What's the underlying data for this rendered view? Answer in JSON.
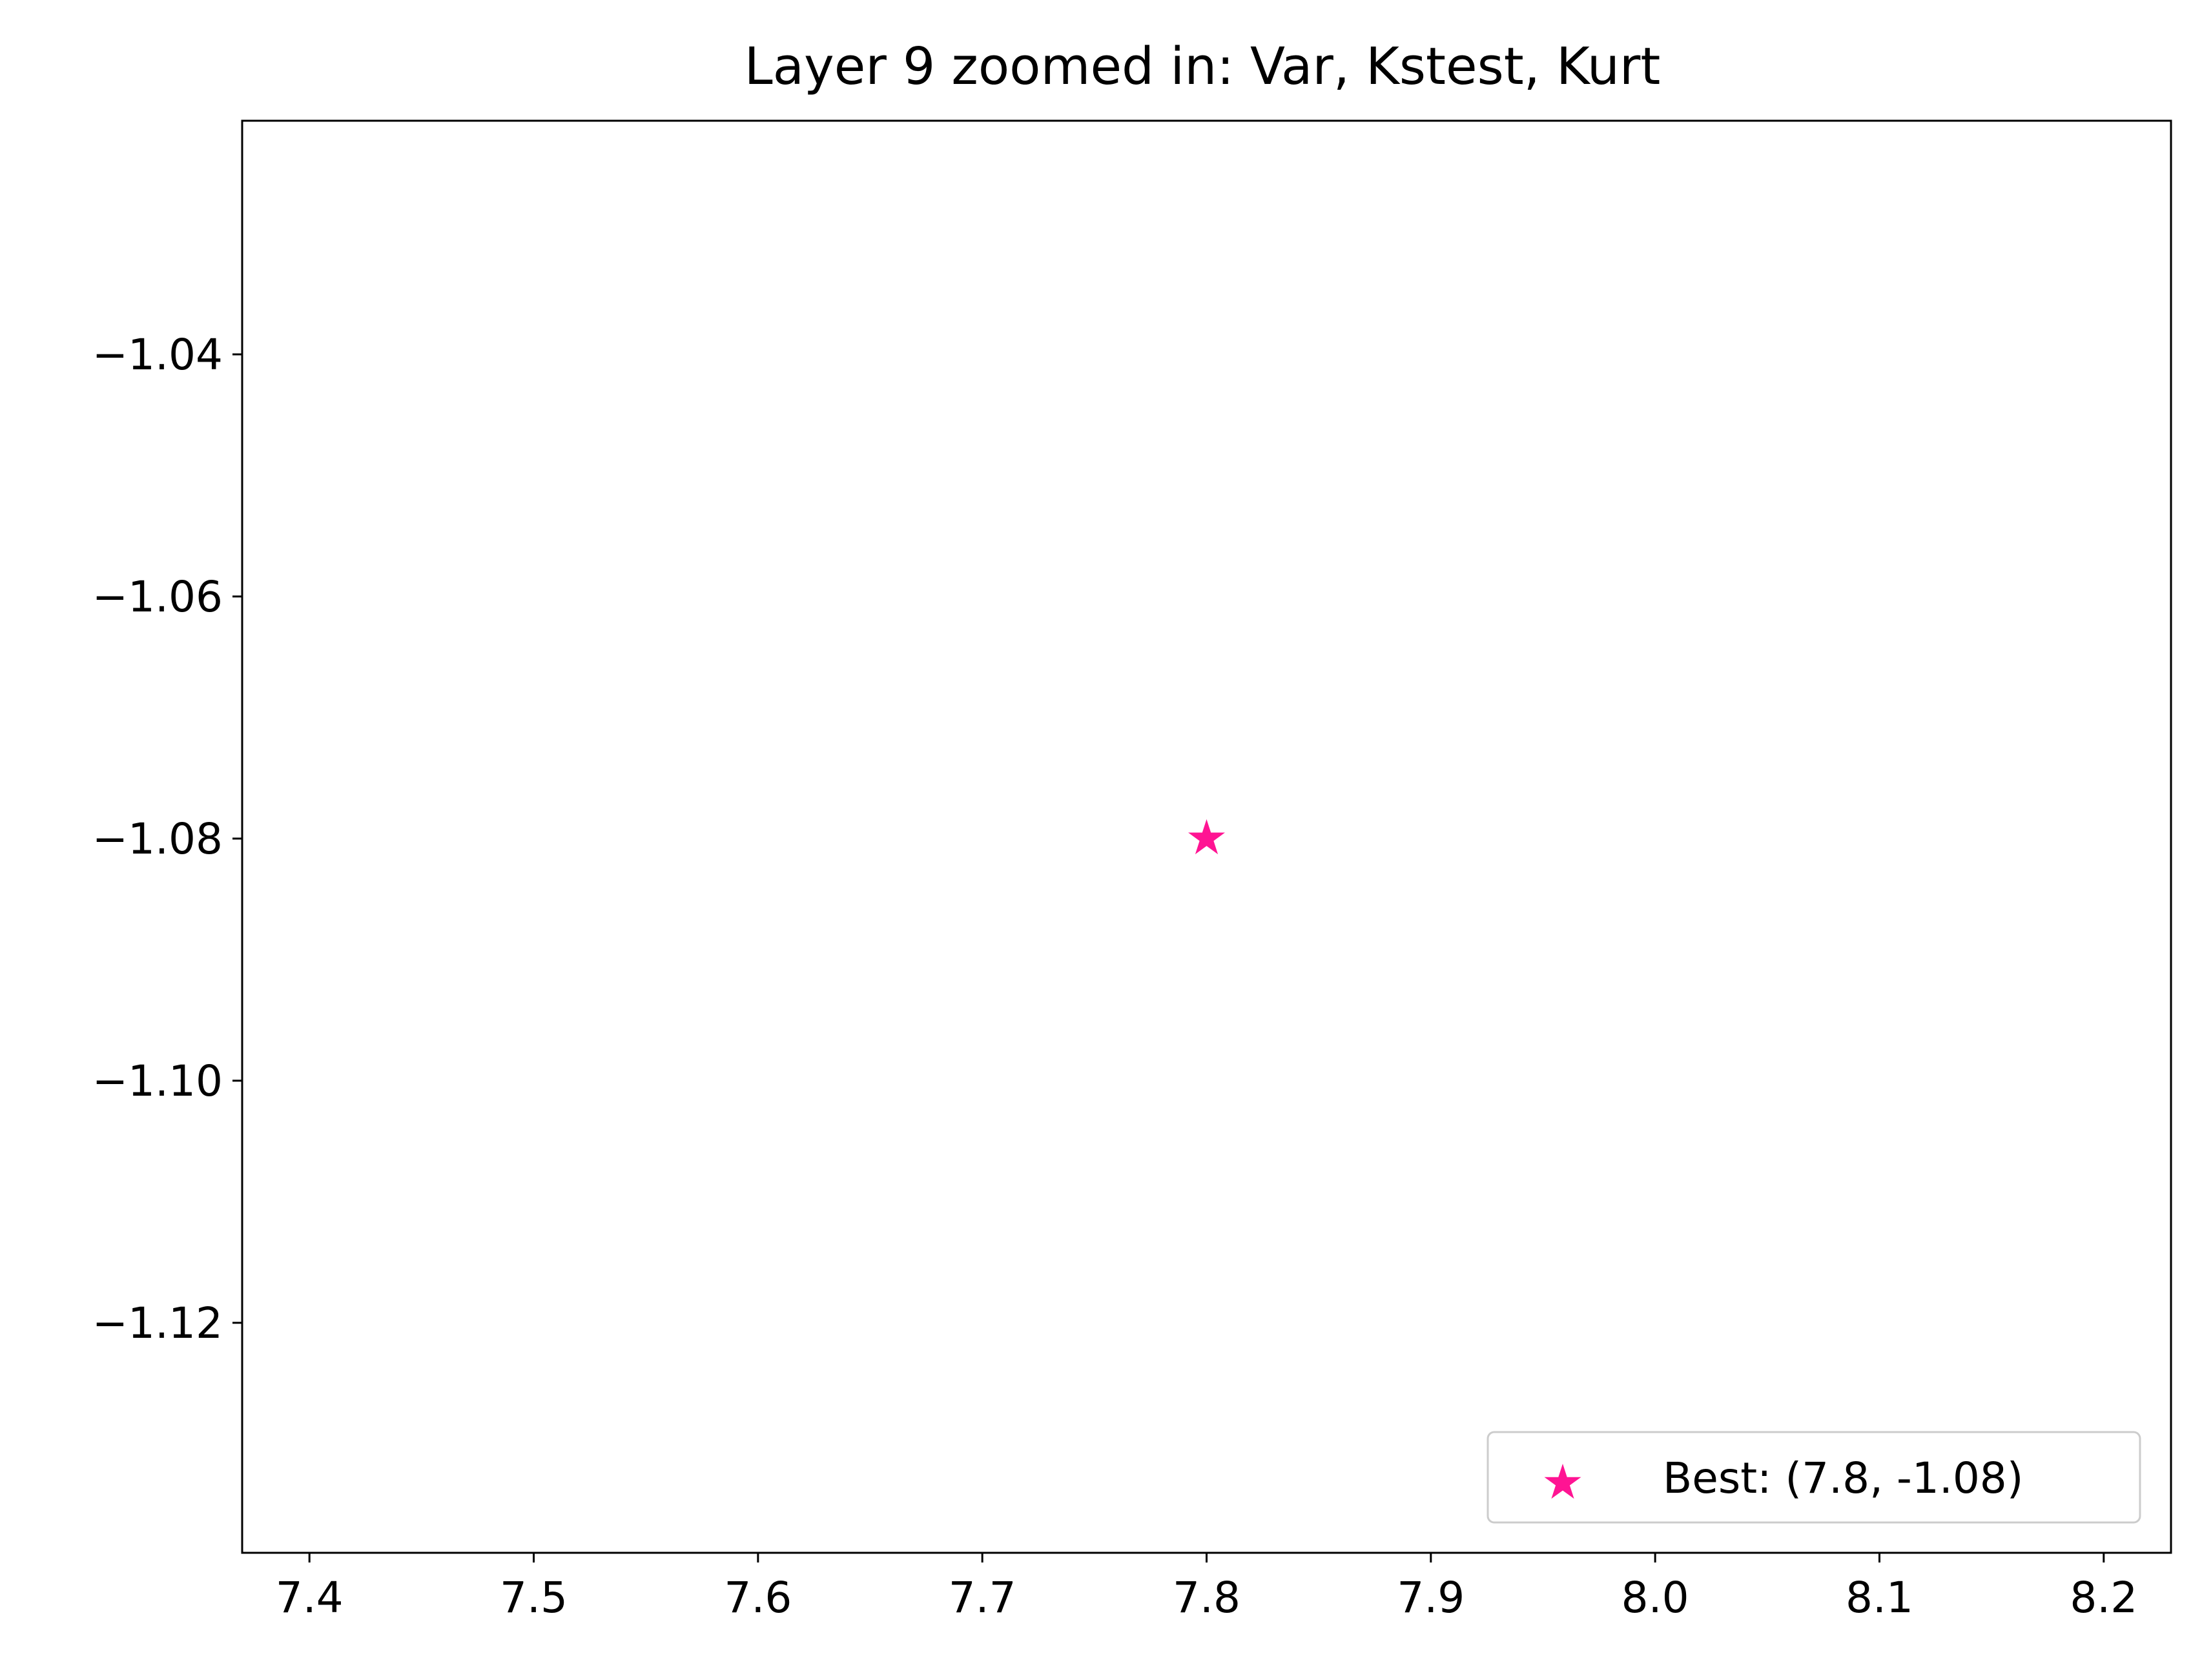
{
  "chart_data": {
    "type": "scatter",
    "title": "Layer 9 zoomed in: Var, Kstest, Kurt",
    "xlabel": "",
    "ylabel": "",
    "xlim": [
      7.37,
      8.23
    ],
    "ylim": [
      -1.139,
      -1.0207
    ],
    "x_ticks": [
      7.4,
      7.5,
      7.6,
      7.7,
      7.8,
      7.9,
      8.0,
      8.1,
      8.2
    ],
    "x_tick_labels": [
      "7.4",
      "7.5",
      "7.6",
      "7.7",
      "7.8",
      "7.9",
      "8.0",
      "8.1",
      "8.2"
    ],
    "y_ticks": [
      -1.04,
      -1.06,
      -1.08,
      -1.1,
      -1.12
    ],
    "y_tick_labels": [
      "−1.04",
      "−1.06",
      "−1.08",
      "−1.10",
      "−1.12"
    ],
    "grid": false,
    "legend_position": "lower right",
    "series": [
      {
        "name": "Best: (7.8, -1.08)",
        "marker": "star",
        "color": "#ff1493",
        "points": [
          {
            "x": 7.8,
            "y": -1.08
          }
        ]
      }
    ]
  }
}
